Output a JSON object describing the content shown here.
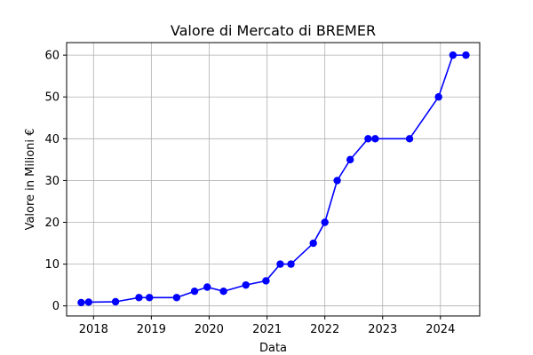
{
  "chart_data": {
    "type": "line",
    "title": "Valore di Mercato di BREMER",
    "xlabel": "Data",
    "ylabel": "Valore in Milioni €",
    "x_axis_type": "date",
    "xlim": [
      "2017-07-15",
      "2024-09-05"
    ],
    "ylim": [
      -2.4,
      63
    ],
    "x_ticks": [
      "2018",
      "2019",
      "2020",
      "2021",
      "2022",
      "2023",
      "2024"
    ],
    "y_ticks": [
      "0",
      "10",
      "20",
      "30",
      "40",
      "50",
      "60"
    ],
    "grid": true,
    "line_color": "#0000ff",
    "marker_color": "#0000ff",
    "series": [
      {
        "x": [
          "2017-10-15",
          "2017-12-01",
          "2018-05-20",
          "2018-10-15",
          "2018-12-20",
          "2019-06-10",
          "2019-10-01",
          "2019-12-20",
          "2020-04-01",
          "2020-08-20",
          "2020-12-25",
          "2021-03-25",
          "2021-06-01",
          "2021-10-20",
          "2022-01-01",
          "2022-03-20",
          "2022-06-10",
          "2022-10-01",
          "2022-11-15",
          "2023-06-20",
          "2023-12-20",
          "2024-03-20",
          "2024-06-10"
        ],
        "values": [
          0.8,
          0.9,
          1,
          2,
          2,
          2,
          3.5,
          4.5,
          3.5,
          5,
          6,
          10,
          10,
          15,
          20,
          30,
          35,
          40,
          40,
          40,
          50,
          60,
          60
        ]
      }
    ]
  }
}
